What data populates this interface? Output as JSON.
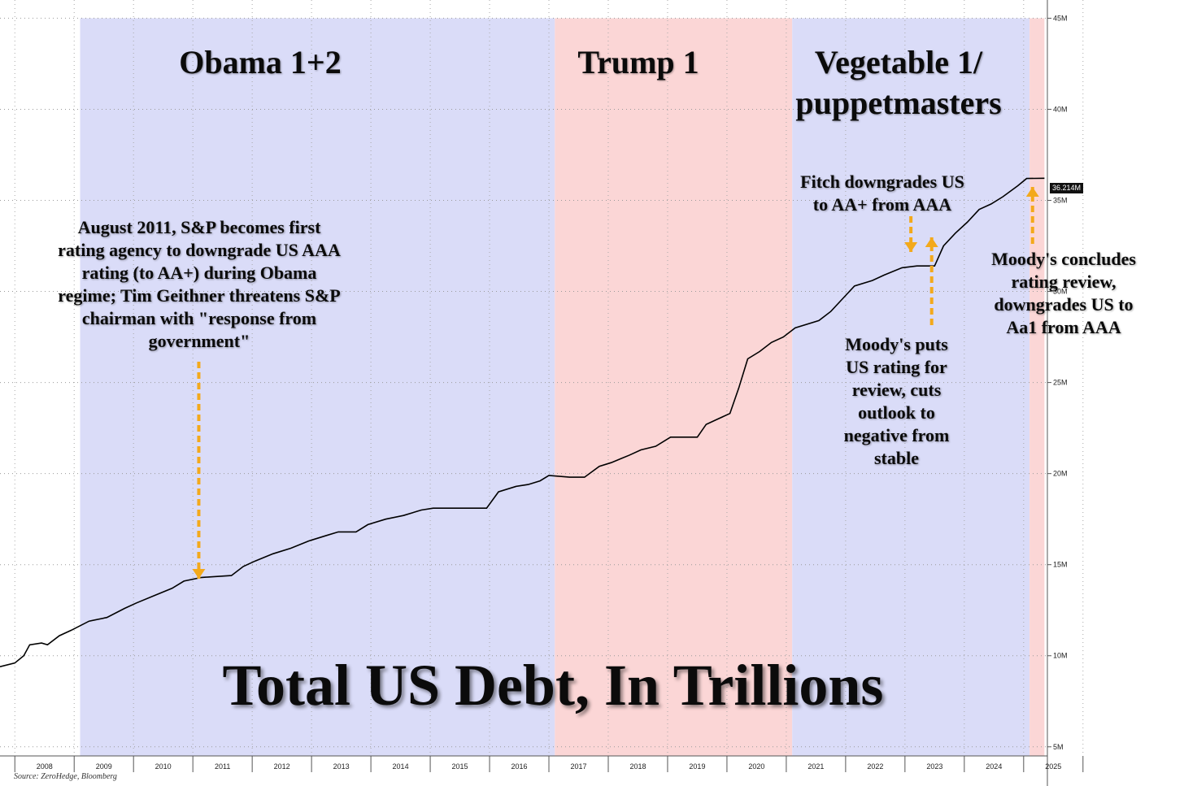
{
  "chart_data": {
    "type": "line",
    "title": "Total US Debt, In Trillions",
    "source": "Source: ZeroHedge, Bloomberg",
    "y_unit": "M",
    "ylim": [
      4.5,
      46
    ],
    "y_ticks": [
      {
        "value": 5,
        "label": "5M"
      },
      {
        "value": 10,
        "label": "10M"
      },
      {
        "value": 15,
        "label": "15M"
      },
      {
        "value": 20,
        "label": "20M"
      },
      {
        "value": 25,
        "label": "25M"
      },
      {
        "value": 30,
        "label": "30M"
      },
      {
        "value": 35,
        "label": "35M"
      },
      {
        "value": 40,
        "label": "40M"
      },
      {
        "value": 45,
        "label": "45M"
      }
    ],
    "x_range": [
      2007.7,
      2025.35
    ],
    "x_ticks": [
      "2008",
      "2009",
      "2010",
      "2011",
      "2012",
      "2013",
      "2014",
      "2015",
      "2016",
      "2017",
      "2018",
      "2019",
      "2020",
      "2021",
      "2022",
      "2023",
      "2024",
      "2025"
    ],
    "grid": true,
    "last_value_label": "36.214M",
    "shaded_periods": [
      {
        "label": "Obama 1+2",
        "start": 2009.05,
        "end": 2017.05,
        "color": "#dadcf8"
      },
      {
        "label": "Trump 1",
        "start": 2017.05,
        "end": 2021.05,
        "color": "#fbd6d6"
      },
      {
        "label": "Vegetable 1/\npuppetmasters",
        "start": 2021.05,
        "end": 2025.05,
        "color": "#dadcf8"
      },
      {
        "label": "",
        "start": 2025.05,
        "end": 2025.3,
        "color": "#fbd6d6"
      }
    ],
    "annotations": [
      {
        "text": "August 2011, S&P becomes first\nrating agency to downgrade US AAA\nrating (to AA+) during Obama\nregime; Tim Geithner threatens S&P\nchairman with \"response from\ngovernment\""
      },
      {
        "text": "Fitch downgrades US\nto AA+ from AAA"
      },
      {
        "text": "Moody's puts\nUS rating for\nreview, cuts\noutlook to\nnegative from\nstable"
      },
      {
        "text": "Moody's concludes\nrating review,\ndowngrades US to\nAa1 from AAA"
      }
    ],
    "series": [
      {
        "color": "#000000",
        "points": [
          [
            2007.7,
            9.4
          ],
          [
            2007.95,
            9.6
          ],
          [
            2008.1,
            10.0
          ],
          [
            2008.2,
            10.6
          ],
          [
            2008.4,
            10.7
          ],
          [
            2008.5,
            10.6
          ],
          [
            2008.7,
            11.1
          ],
          [
            2008.9,
            11.4
          ],
          [
            2009.2,
            11.9
          ],
          [
            2009.5,
            12.1
          ],
          [
            2009.8,
            12.6
          ],
          [
            2010.0,
            12.9
          ],
          [
            2010.3,
            13.3
          ],
          [
            2010.6,
            13.7
          ],
          [
            2010.8,
            14.1
          ],
          [
            2011.1,
            14.3
          ],
          [
            2011.6,
            14.4
          ],
          [
            2011.8,
            14.9
          ],
          [
            2012.0,
            15.2
          ],
          [
            2012.3,
            15.6
          ],
          [
            2012.6,
            15.9
          ],
          [
            2012.9,
            16.3
          ],
          [
            2013.2,
            16.6
          ],
          [
            2013.4,
            16.8
          ],
          [
            2013.7,
            16.8
          ],
          [
            2013.9,
            17.2
          ],
          [
            2014.2,
            17.5
          ],
          [
            2014.5,
            17.7
          ],
          [
            2014.8,
            18.0
          ],
          [
            2015.0,
            18.1
          ],
          [
            2015.2,
            18.1
          ],
          [
            2015.6,
            18.1
          ],
          [
            2015.9,
            18.1
          ],
          [
            2016.1,
            19.0
          ],
          [
            2016.4,
            19.3
          ],
          [
            2016.6,
            19.4
          ],
          [
            2016.8,
            19.6
          ],
          [
            2016.95,
            19.9
          ],
          [
            2017.3,
            19.8
          ],
          [
            2017.55,
            19.8
          ],
          [
            2017.8,
            20.4
          ],
          [
            2018.0,
            20.6
          ],
          [
            2018.3,
            21.0
          ],
          [
            2018.5,
            21.3
          ],
          [
            2018.75,
            21.5
          ],
          [
            2019.0,
            22.0
          ],
          [
            2019.2,
            22.0
          ],
          [
            2019.45,
            22.0
          ],
          [
            2019.6,
            22.7
          ],
          [
            2019.8,
            23.0
          ],
          [
            2020.0,
            23.3
          ],
          [
            2020.15,
            24.7
          ],
          [
            2020.3,
            26.3
          ],
          [
            2020.5,
            26.7
          ],
          [
            2020.7,
            27.2
          ],
          [
            2020.9,
            27.5
          ],
          [
            2021.1,
            28.0
          ],
          [
            2021.5,
            28.4
          ],
          [
            2021.7,
            28.9
          ],
          [
            2021.9,
            29.6
          ],
          [
            2022.1,
            30.3
          ],
          [
            2022.4,
            30.6
          ],
          [
            2022.6,
            30.9
          ],
          [
            2022.9,
            31.3
          ],
          [
            2023.15,
            31.4
          ],
          [
            2023.45,
            31.4
          ],
          [
            2023.6,
            32.5
          ],
          [
            2023.8,
            33.2
          ],
          [
            2024.0,
            33.8
          ],
          [
            2024.2,
            34.5
          ],
          [
            2024.4,
            34.8
          ],
          [
            2024.6,
            35.2
          ],
          [
            2024.85,
            35.8
          ],
          [
            2025.0,
            36.2
          ],
          [
            2025.3,
            36.214
          ]
        ]
      }
    ]
  }
}
